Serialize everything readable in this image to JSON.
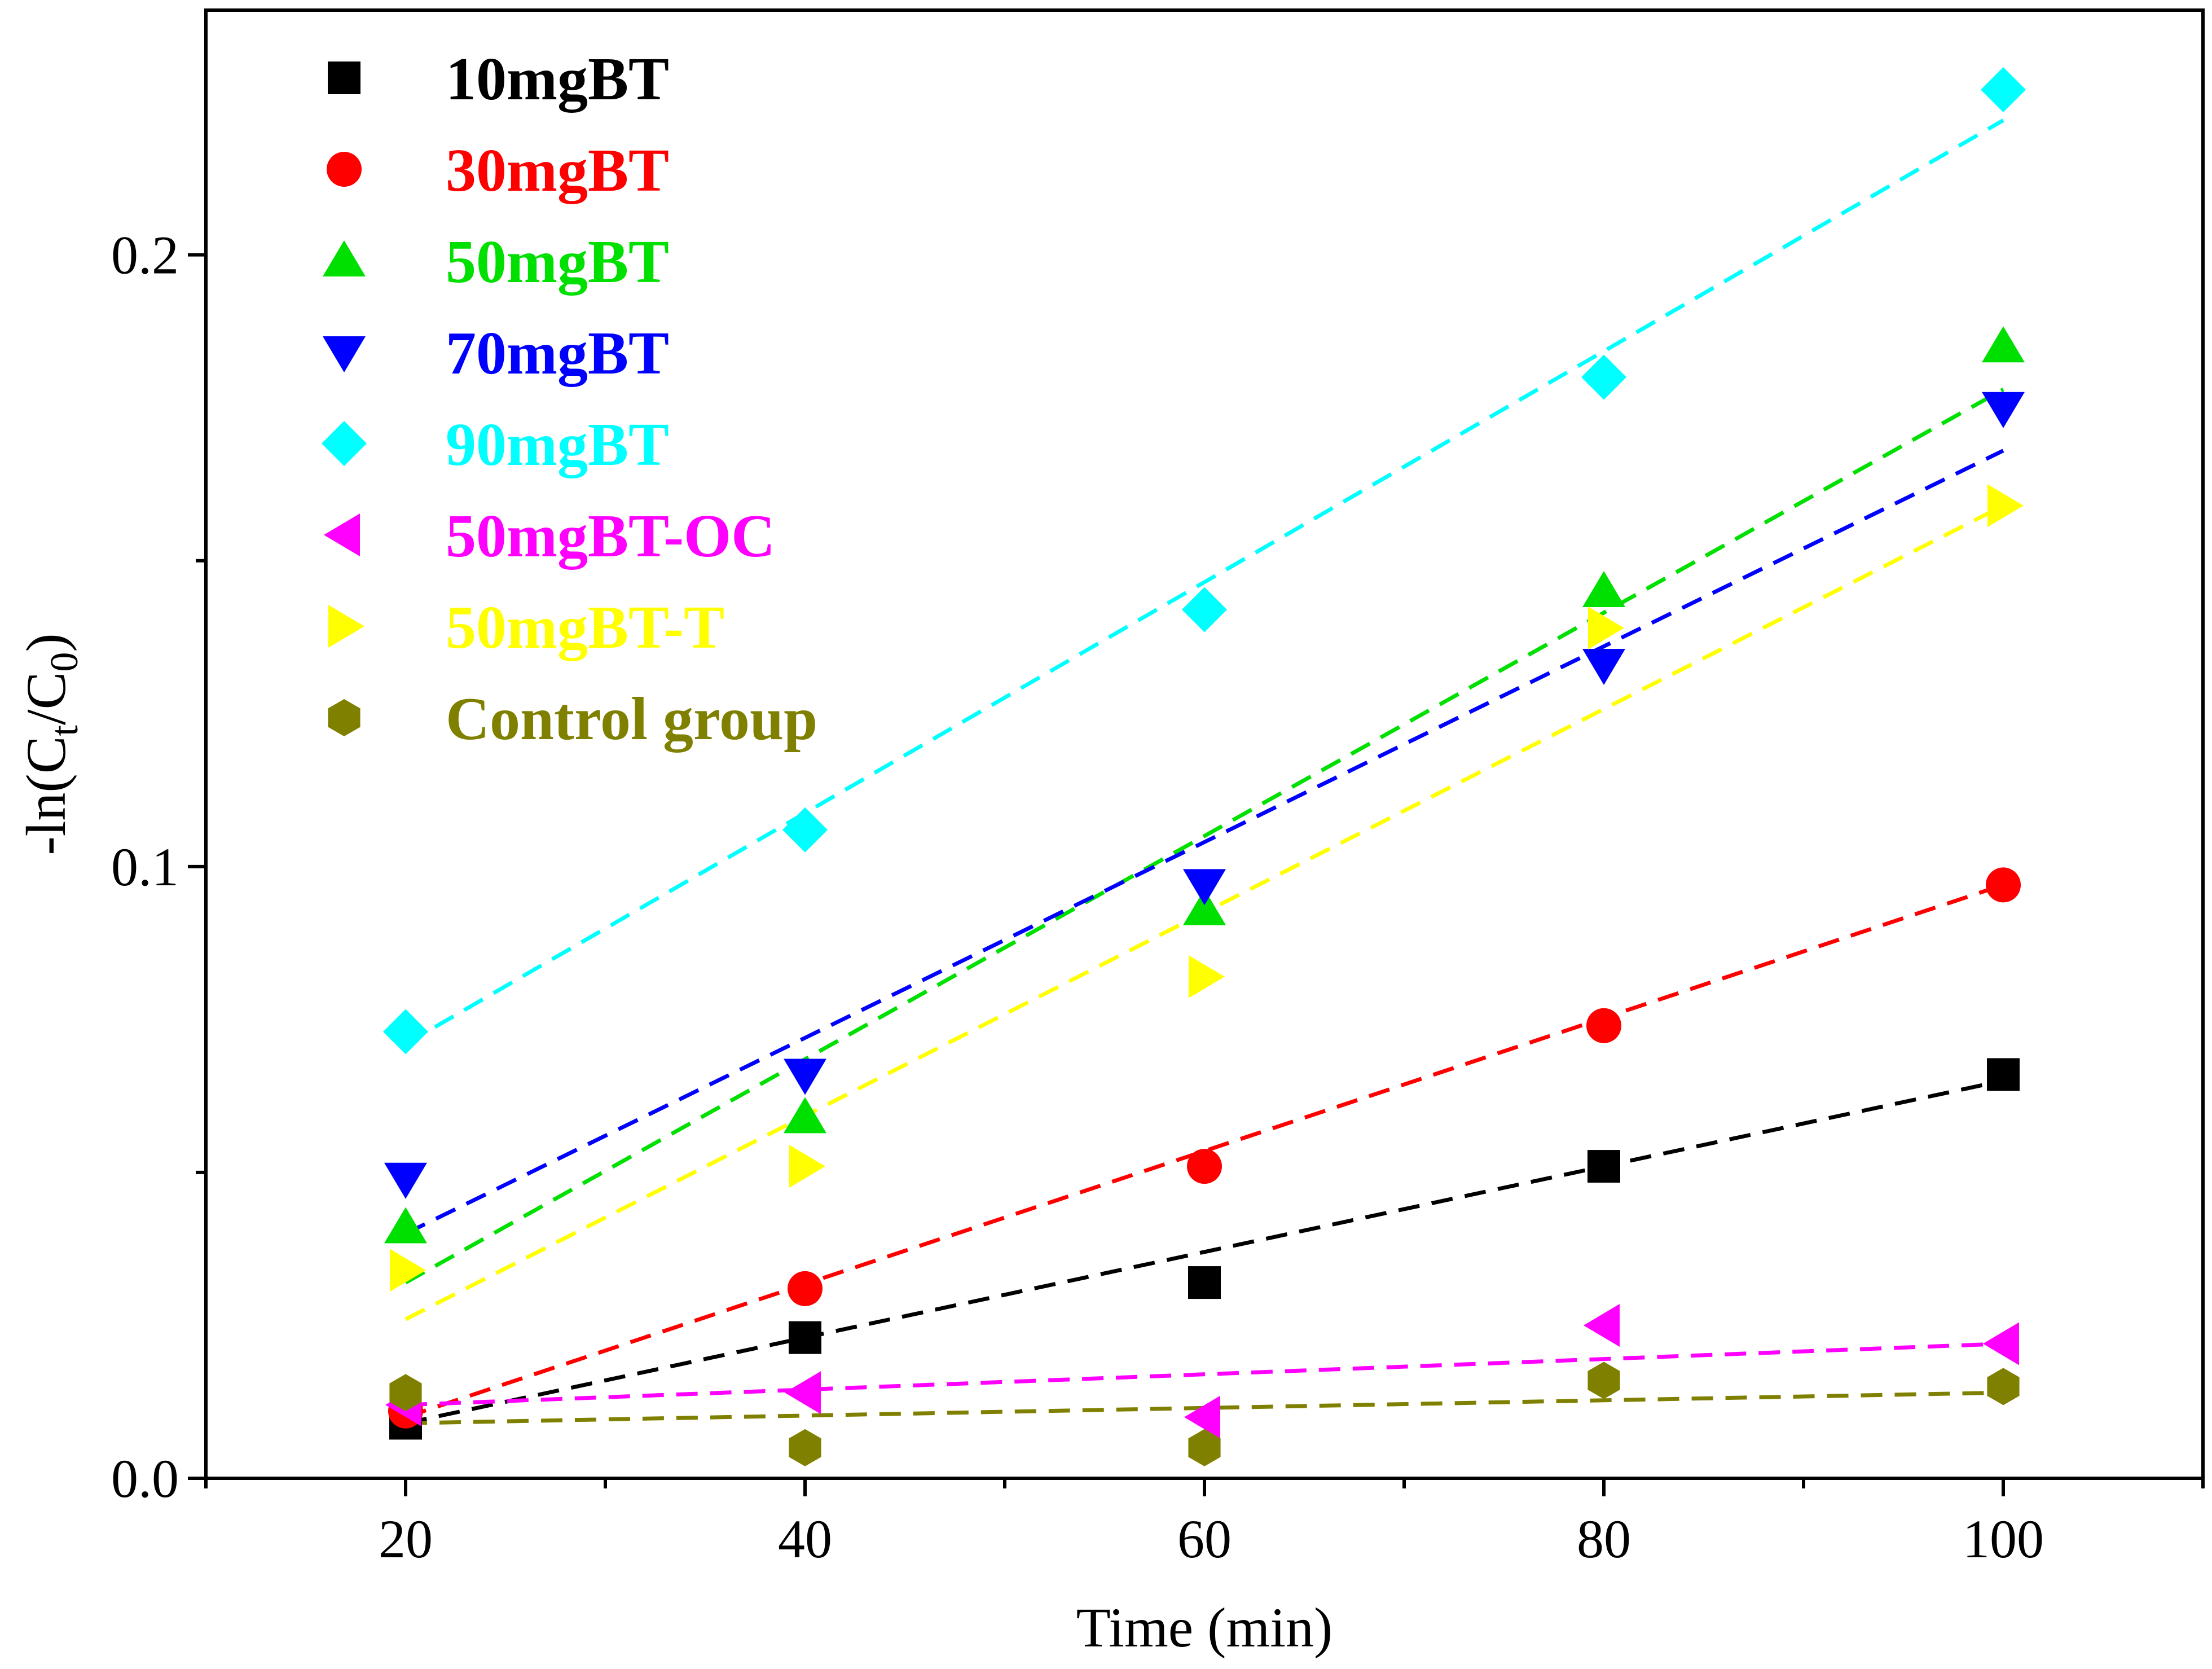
{
  "chart_data": {
    "type": "scatter",
    "xlabel": "Time (min)",
    "ylabel_parts": [
      "-ln(C",
      "t",
      "/C",
      "0",
      ")"
    ],
    "xlim": [
      10,
      110
    ],
    "ylim": [
      0.0,
      0.24
    ],
    "x_ticks": [
      20,
      40,
      60,
      80,
      100
    ],
    "x_minor_ticks": [
      10,
      30,
      50,
      70,
      90,
      110
    ],
    "y_ticks": [
      0.0,
      0.1,
      0.2
    ],
    "y_tick_labels": [
      "0.0",
      "0.1",
      "0.2"
    ],
    "y_minor_ticks": [
      0.05,
      0.15
    ],
    "x_tick_labels": [
      "20",
      "40",
      "60",
      "80",
      "100"
    ],
    "legend_position": "top-left",
    "fit_lines": "linear, dashed",
    "x": [
      20,
      40,
      60,
      80,
      100
    ],
    "series": [
      {
        "name": "10mgBT",
        "color": "#000000",
        "marker": "square",
        "values": [
          0.009,
          0.023,
          0.032,
          0.051,
          0.066
        ],
        "fit": [
          [
            20,
            0.009
          ],
          [
            100,
            0.065
          ]
        ]
      },
      {
        "name": "30mgBT",
        "color": "#ff0000",
        "marker": "circle",
        "values": [
          0.011,
          0.031,
          0.051,
          0.074,
          0.097
        ],
        "fit": [
          [
            20,
            0.01
          ],
          [
            100,
            0.097
          ]
        ]
      },
      {
        "name": "50mgBT",
        "color": "#00e000",
        "marker": "triangle-up",
        "values": [
          0.041,
          0.059,
          0.093,
          0.145,
          0.185
        ],
        "fit": [
          [
            20,
            0.032
          ],
          [
            100,
            0.178
          ]
        ]
      },
      {
        "name": "70mgBT",
        "color": "#0000ff",
        "marker": "triangle-down",
        "values": [
          0.049,
          0.066,
          0.097,
          0.133,
          0.175
        ],
        "fit": [
          [
            20,
            0.04
          ],
          [
            100,
            0.168
          ]
        ]
      },
      {
        "name": "90mgBT",
        "color": "#00ffff",
        "marker": "diamond",
        "values": [
          0.073,
          0.106,
          0.142,
          0.18,
          0.227
        ],
        "fit": [
          [
            20,
            0.071
          ],
          [
            100,
            0.222
          ]
        ]
      },
      {
        "name": "50mgBT-OC",
        "color": "#ff00ff",
        "marker": "triangle-left",
        "values": [
          0.012,
          0.014,
          0.01,
          0.025,
          0.022
        ],
        "fit": [
          [
            20,
            0.012
          ],
          [
            100,
            0.022
          ]
        ]
      },
      {
        "name": "50mgBT-T",
        "color": "#ffff00",
        "marker": "triangle-right",
        "values": [
          0.034,
          0.051,
          0.082,
          0.139,
          0.159
        ],
        "fit": [
          [
            20,
            0.026
          ],
          [
            100,
            0.159
          ]
        ]
      },
      {
        "name": "Control group",
        "color": "#808000",
        "marker": "hexagon",
        "values": [
          0.014,
          0.005,
          0.005,
          0.016,
          0.015
        ],
        "fit": [
          [
            20,
            0.009
          ],
          [
            100,
            0.014
          ]
        ]
      }
    ]
  }
}
